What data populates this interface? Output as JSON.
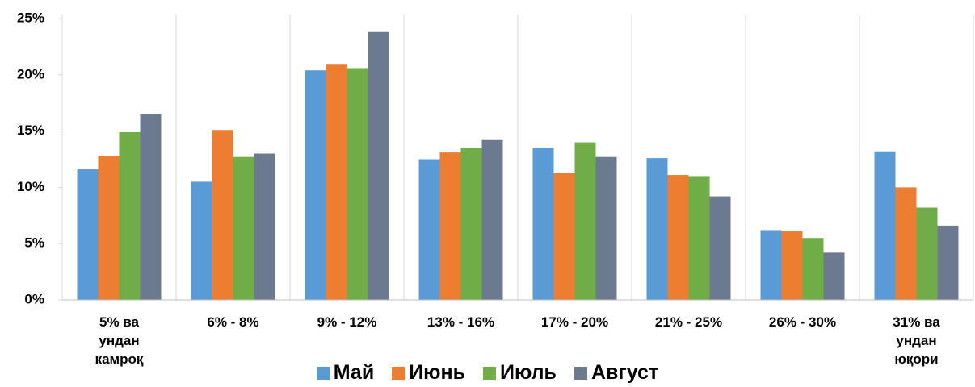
{
  "chart_data": {
    "type": "bar",
    "categories": [
      "5%  ва\nундан\nкамроқ",
      "6%  - 8%",
      "9%  - 12%",
      "13%  - 16%",
      "17%  - 20%",
      "21%  - 25%",
      "26%  - 30%",
      "31%  ва\nундан\nюқори"
    ],
    "series": [
      {
        "name": "Май",
        "color": "#5b9bd5",
        "values": [
          11.6,
          10.5,
          20.4,
          12.5,
          13.5,
          12.6,
          6.2,
          13.2
        ]
      },
      {
        "name": "Июнь",
        "color": "#ed7d31",
        "values": [
          12.8,
          15.1,
          20.9,
          13.1,
          11.3,
          11.1,
          6.1,
          10.0
        ]
      },
      {
        "name": "Июль",
        "color": "#70ad47",
        "values": [
          14.9,
          12.7,
          20.6,
          13.5,
          14.0,
          11.0,
          5.5,
          8.2
        ]
      },
      {
        "name": "Август",
        "color": "#6b7a8f",
        "values": [
          16.5,
          13.0,
          23.8,
          14.2,
          12.7,
          9.2,
          4.2,
          6.6
        ]
      }
    ],
    "ylim": [
      0,
      25
    ],
    "yticks": [
      {
        "value": 0,
        "label": "0%"
      },
      {
        "value": 5,
        "label": "5%"
      },
      {
        "value": 10,
        "label": "10%"
      },
      {
        "value": 15,
        "label": "15%"
      },
      {
        "value": 20,
        "label": "20%"
      },
      {
        "value": 25,
        "label": "25%"
      }
    ],
    "legend": "bottom"
  }
}
